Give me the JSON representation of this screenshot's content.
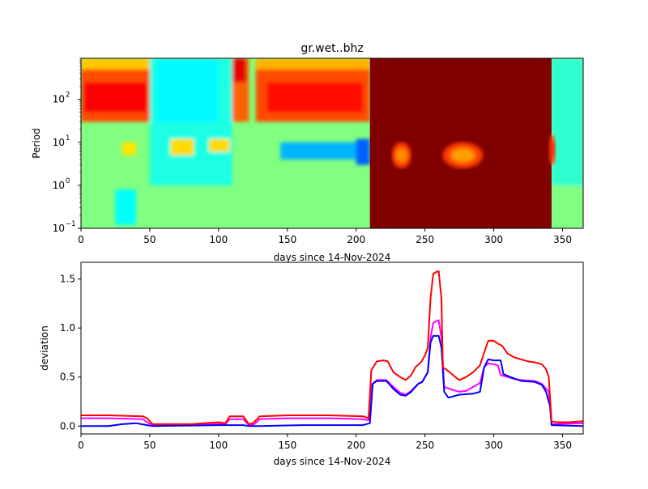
{
  "chart_data": [
    {
      "type": "heatmap",
      "title": "gr.wet..bhz",
      "xlabel": "days since 14-Nov-2024",
      "ylabel": "Period",
      "xlim": [
        0,
        365
      ],
      "ylim": [
        0.1,
        900
      ],
      "yscale": "log",
      "xticks": [
        "0",
        "50",
        "100",
        "150",
        "200",
        "250",
        "300",
        "350"
      ],
      "yticks": [
        {
          "base": "10",
          "exp": "−1"
        },
        {
          "base": "10",
          "exp": "0"
        },
        {
          "base": "10",
          "exp": "1"
        },
        {
          "base": "10",
          "exp": "2"
        }
      ],
      "colormap": "jet",
      "background_level": 0.5,
      "regions": [
        {
          "days": [
            0,
            50
          ],
          "period": [
            30,
            900
          ],
          "level": 0.8
        },
        {
          "days": [
            2,
            48
          ],
          "period": [
            50,
            250
          ],
          "level": 0.88
        },
        {
          "days": [
            0,
            50
          ],
          "period": [
            500,
            900
          ],
          "level": 0.68
        },
        {
          "days": [
            50,
            110
          ],
          "period": [
            1,
            900
          ],
          "level": 0.4
        },
        {
          "days": [
            55,
            100
          ],
          "period": [
            30,
            900
          ],
          "level": 0.37
        },
        {
          "days": [
            110,
            122
          ],
          "period": [
            30,
            900
          ],
          "level": 0.78
        },
        {
          "days": [
            110,
            120
          ],
          "period": [
            250,
            900
          ],
          "level": 0.9
        },
        {
          "days": [
            127,
            210
          ],
          "period": [
            30,
            900
          ],
          "level": 0.8
        },
        {
          "days": [
            135,
            205
          ],
          "period": [
            50,
            250
          ],
          "level": 0.86
        },
        {
          "days": [
            127,
            210
          ],
          "period": [
            500,
            900
          ],
          "level": 0.7
        },
        {
          "days": [
            145,
            205
          ],
          "period": [
            4,
            10
          ],
          "level": 0.3
        },
        {
          "days": [
            200,
            210
          ],
          "period": [
            3,
            12
          ],
          "level": 0.22
        },
        {
          "days": [
            30,
            40
          ],
          "period": [
            5,
            10
          ],
          "level": 0.65
        },
        {
          "days": [
            65,
            82
          ],
          "period": [
            5,
            12
          ],
          "level": 0.66
        },
        {
          "days": [
            93,
            108
          ],
          "period": [
            6,
            12
          ],
          "level": 0.66
        },
        {
          "days": [
            25,
            40
          ],
          "period": [
            0.12,
            0.8
          ],
          "level": 0.38
        },
        {
          "days": [
            210,
            342
          ],
          "period": [
            0.1,
            900
          ],
          "level": 1.0
        },
        {
          "days": [
            226,
            240
          ],
          "period": [
            2.5,
            10
          ],
          "level": 0.74
        },
        {
          "days": [
            263,
            292
          ],
          "period": [
            2.5,
            10
          ],
          "level": 0.72
        },
        {
          "days": [
            340,
            345
          ],
          "period": [
            3,
            15
          ],
          "level": 0.85
        },
        {
          "days": [
            342,
            365
          ],
          "period": [
            1,
            900
          ],
          "level": 0.42
        },
        {
          "days": [
            342,
            365
          ],
          "period": [
            0.1,
            1
          ],
          "level": 0.5
        }
      ]
    },
    {
      "type": "line",
      "xlabel": "days since 14-Nov-2024",
      "ylabel": "deviation",
      "xlim": [
        0,
        365
      ],
      "ylim": [
        -0.08,
        1.67
      ],
      "xticks": [
        "0",
        "50",
        "100",
        "150",
        "200",
        "250",
        "300",
        "350"
      ],
      "yticks": [
        "0.0",
        "0.5",
        "1.0",
        "1.5"
      ],
      "series": [
        {
          "name": "magenta",
          "color": "#ff00ff",
          "x": [
            0,
            20,
            45,
            48,
            52,
            80,
            100,
            105,
            108,
            118,
            122,
            126,
            130,
            150,
            180,
            205,
            209,
            211,
            215,
            222,
            227,
            232,
            236,
            240,
            245,
            248,
            252,
            254,
            256,
            258,
            260,
            262,
            264,
            270,
            275,
            280,
            285,
            290,
            293,
            296,
            300,
            303,
            305,
            310,
            315,
            320,
            330,
            335,
            340,
            342,
            365
          ],
          "y": [
            0.08,
            0.08,
            0.07,
            0.04,
            0.01,
            0.01,
            0.02,
            0.02,
            0.07,
            0.07,
            0.01,
            0.02,
            0.07,
            0.08,
            0.08,
            0.07,
            0.06,
            0.42,
            0.47,
            0.47,
            0.4,
            0.34,
            0.32,
            0.36,
            0.43,
            0.45,
            0.55,
            0.9,
            1.05,
            1.07,
            1.08,
            0.9,
            0.4,
            0.37,
            0.35,
            0.36,
            0.4,
            0.44,
            0.6,
            0.64,
            0.63,
            0.62,
            0.52,
            0.5,
            0.48,
            0.47,
            0.46,
            0.43,
            0.35,
            0.02,
            0.03
          ]
        },
        {
          "name": "blue",
          "color": "#0000ff",
          "x": [
            0,
            20,
            30,
            40,
            48,
            52,
            100,
            108,
            118,
            122,
            130,
            160,
            205,
            210,
            212,
            215,
            222,
            227,
            232,
            236,
            240,
            245,
            248,
            252,
            254,
            256,
            260,
            262,
            264,
            267,
            275,
            285,
            290,
            293,
            296,
            300,
            305,
            307,
            312,
            320,
            330,
            335,
            338,
            341,
            342,
            365
          ],
          "y": [
            0.0,
            0.0,
            0.02,
            0.03,
            0.01,
            0.0,
            0.01,
            0.01,
            0.01,
            0.0,
            0.0,
            0.01,
            0.01,
            0.03,
            0.43,
            0.46,
            0.46,
            0.38,
            0.32,
            0.31,
            0.35,
            0.43,
            0.45,
            0.55,
            0.85,
            0.92,
            0.92,
            0.8,
            0.35,
            0.29,
            0.32,
            0.33,
            0.35,
            0.6,
            0.68,
            0.67,
            0.67,
            0.53,
            0.5,
            0.46,
            0.45,
            0.42,
            0.35,
            0.2,
            0.01,
            0.0
          ]
        },
        {
          "name": "red",
          "color": "#ff0000",
          "x": [
            0,
            20,
            45,
            48,
            52,
            80,
            100,
            105,
            108,
            118,
            122,
            125,
            130,
            150,
            180,
            205,
            209,
            211,
            215,
            220,
            223,
            227,
            232,
            236,
            240,
            243,
            247,
            250,
            252,
            254,
            256,
            258,
            260,
            262,
            263,
            268,
            272,
            275,
            280,
            285,
            290,
            293,
            296,
            300,
            303,
            306,
            310,
            315,
            320,
            325,
            330,
            335,
            338,
            340,
            342,
            345,
            355,
            365
          ],
          "y": [
            0.11,
            0.11,
            0.1,
            0.08,
            0.02,
            0.02,
            0.04,
            0.03,
            0.1,
            0.1,
            0.02,
            0.03,
            0.1,
            0.11,
            0.11,
            0.1,
            0.08,
            0.57,
            0.66,
            0.67,
            0.66,
            0.55,
            0.5,
            0.47,
            0.52,
            0.6,
            0.65,
            0.72,
            0.8,
            1.3,
            1.55,
            1.57,
            1.58,
            1.3,
            0.6,
            0.55,
            0.5,
            0.47,
            0.5,
            0.55,
            0.62,
            0.75,
            0.87,
            0.87,
            0.84,
            0.82,
            0.74,
            0.7,
            0.68,
            0.66,
            0.65,
            0.63,
            0.58,
            0.5,
            0.05,
            0.04,
            0.04,
            0.05
          ]
        }
      ]
    }
  ]
}
